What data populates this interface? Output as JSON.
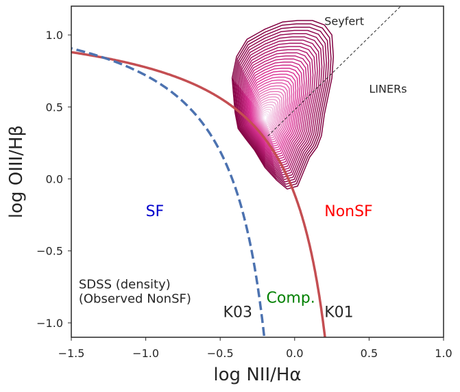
{
  "chart_data": {
    "type": "bpt-diagram",
    "xlabel": "log NII/Hα",
    "ylabel": "log OIII/Hβ",
    "xlim": [
      -1.5,
      1.0
    ],
    "ylim": [
      -1.1,
      1.2
    ],
    "xticks": [
      -1.5,
      -1.0,
      -0.5,
      0.0,
      0.5,
      1.0
    ],
    "xtick_labels": [
      "−1.5",
      "−1.0",
      "−0.5",
      "0.0",
      "0.5",
      "1.0"
    ],
    "yticks": [
      -1.0,
      -0.5,
      0.0,
      0.5,
      1.0
    ],
    "ytick_labels": [
      "−1.0",
      "−0.5",
      "0.0",
      "0.5",
      "1.0"
    ],
    "grid": false,
    "series": [
      {
        "name": "K01",
        "kind": "curve",
        "formula": "0.61/(x-0.47)+1.19",
        "color": "#c44e52",
        "style": "solid"
      },
      {
        "name": "K03",
        "kind": "curve",
        "formula": "0.61/(x-0.05)+1.3",
        "color": "#4c72b0",
        "style": "dashed"
      },
      {
        "name": "Seyfert/LINER",
        "kind": "line",
        "formula": "1.01*x+0.48",
        "x_from": -0.18,
        "color": "#262626",
        "style": "dashed-thin"
      },
      {
        "name": "SDSS (density)",
        "kind": "density-contours",
        "levels": 34,
        "center": [
          -0.2,
          0.42
        ],
        "outer_contour": [
          [
            -0.05,
            -0.07
          ],
          [
            0.02,
            -0.05
          ],
          [
            0.06,
            0.05
          ],
          [
            0.1,
            0.15
          ],
          [
            0.15,
            0.22
          ],
          [
            0.18,
            0.3
          ],
          [
            0.2,
            0.45
          ],
          [
            0.22,
            0.55
          ],
          [
            0.25,
            0.7
          ],
          [
            0.26,
            0.85
          ],
          [
            0.25,
            1.0
          ],
          [
            0.2,
            1.07
          ],
          [
            0.12,
            1.1
          ],
          [
            0.02,
            1.1
          ],
          [
            -0.08,
            1.09
          ],
          [
            -0.2,
            1.04
          ],
          [
            -0.32,
            0.97
          ],
          [
            -0.39,
            0.85
          ],
          [
            -0.42,
            0.7
          ],
          [
            -0.41,
            0.58
          ],
          [
            -0.4,
            0.46
          ],
          [
            -0.38,
            0.35
          ],
          [
            -0.33,
            0.28
          ],
          [
            -0.27,
            0.2
          ],
          [
            -0.2,
            0.08
          ],
          [
            -0.12,
            -0.01
          ]
        ]
      }
    ],
    "annotations": [
      {
        "text": "Seyfert",
        "x": 0.2,
        "y": 1.07,
        "color": "#262626",
        "size": 16
      },
      {
        "text": "LINERs",
        "x": 0.5,
        "y": 0.6,
        "color": "#262626",
        "size": 16
      },
      {
        "text": "SF",
        "x": -1.0,
        "y": -0.26,
        "color": "#0000cc",
        "size": 22
      },
      {
        "text": "NonSF",
        "x": 0.2,
        "y": -0.26,
        "color": "#ff0000",
        "size": 22
      },
      {
        "text": "Comp.",
        "x": -0.19,
        "y": -0.86,
        "color": "#008000",
        "size": 22
      },
      {
        "text": "K03",
        "x": -0.48,
        "y": -0.96,
        "color": "#262626",
        "size": 22
      },
      {
        "text": "K01",
        "x": 0.2,
        "y": -0.96,
        "color": "#262626",
        "size": 22
      },
      {
        "text": "SDSS (density)",
        "x": -1.45,
        "y": -0.76,
        "color": "#262626",
        "size": 18
      },
      {
        "text": "(Observed NonSF)",
        "x": -1.45,
        "y": -0.86,
        "color": "#262626",
        "size": 18
      }
    ]
  }
}
